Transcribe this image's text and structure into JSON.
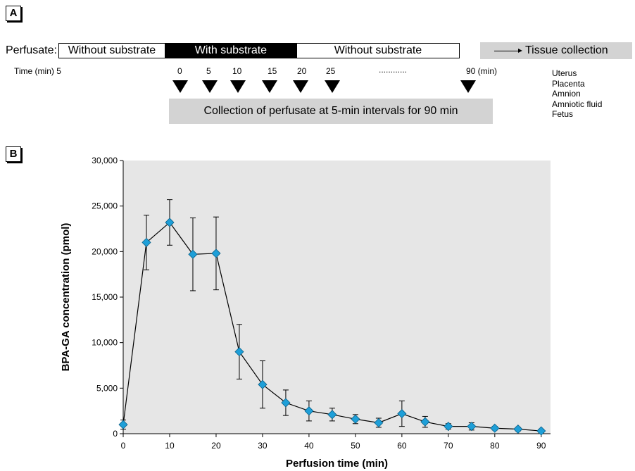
{
  "panel_a": {
    "label": "A",
    "perfusate_label": "Perfusate:",
    "conditions": [
      "Without substrate",
      "With substrate",
      "Without substrate"
    ],
    "tissue_collection": "Tissue collection",
    "time_label": "Time (min) 5",
    "time_points": [
      "0",
      "5",
      "10",
      "15",
      "20",
      "25"
    ],
    "dots": "............",
    "time_end": "90 (min)",
    "collection_text": "Collection of perfusate at 5-min intervals for 90 min",
    "tissues": [
      "Uterus",
      "Placenta",
      "Amnion",
      "Amniotic fluid",
      "Fetus"
    ]
  },
  "panel_b": {
    "label": "B"
  },
  "chart_data": {
    "type": "line",
    "xlabel": "Perfusion time (min)",
    "ylabel": "BPA-GA concentration (pmol)",
    "xlim": [
      0,
      92
    ],
    "ylim": [
      0,
      30000
    ],
    "x_ticks": [
      "0",
      "10",
      "20",
      "30",
      "40",
      "50",
      "60",
      "70",
      "80",
      "90"
    ],
    "y_ticks": [
      "0",
      "5,000",
      "10,000",
      "15,000",
      "20,000",
      "25,000",
      "30,000"
    ],
    "grid": false,
    "background": "#e6e6e6",
    "marker_color": "#1e9fd8",
    "series": [
      {
        "x": [
          0,
          5,
          10,
          15,
          20,
          25,
          30,
          35,
          40,
          45,
          50,
          55,
          60,
          65,
          70,
          75,
          80,
          85,
          90
        ],
        "y": [
          1000,
          21000,
          23200,
          19700,
          19800,
          9000,
          5400,
          3400,
          2500,
          2100,
          1600,
          1200,
          2200,
          1300,
          800,
          800,
          600,
          500,
          300
        ],
        "error": [
          500,
          3000,
          2500,
          4000,
          4000,
          3000,
          2600,
          1400,
          1100,
          700,
          500,
          500,
          1400,
          600,
          300,
          400,
          200,
          200,
          200
        ]
      }
    ]
  }
}
